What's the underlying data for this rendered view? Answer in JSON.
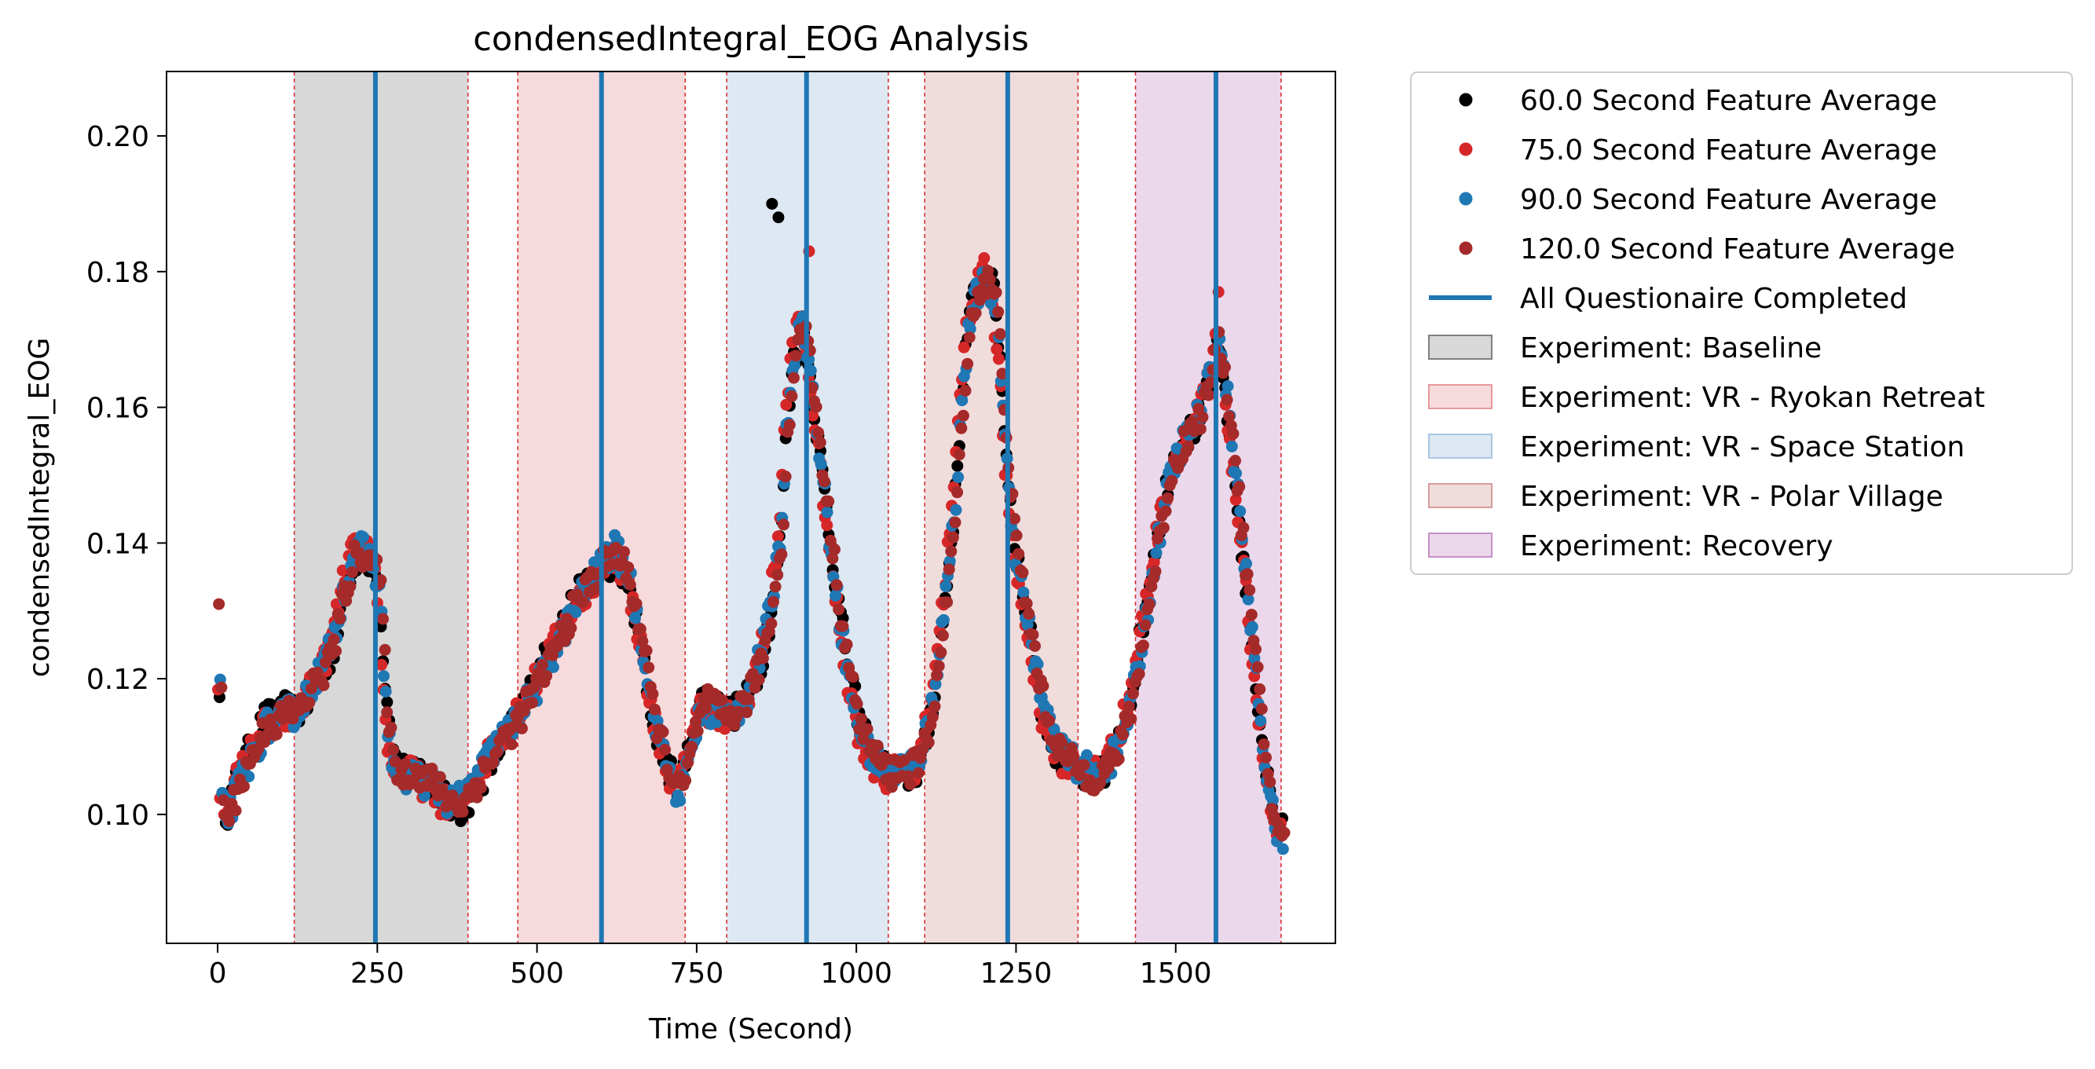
{
  "chart_data": {
    "type": "scatter",
    "title": "condensedIntegral_EOG Analysis",
    "xlabel": "Time (Second)",
    "ylabel": "condensedIntegral_EOG",
    "xlim": [
      -80,
      1750
    ],
    "ylim": [
      0.081,
      0.2095
    ],
    "xticks": [
      0,
      250,
      500,
      750,
      1000,
      1250,
      1500
    ],
    "xtick_labels": [
      "0",
      "250",
      "500",
      "750",
      "1000",
      "1250",
      "1500"
    ],
    "yticks": [
      0.1,
      0.12,
      0.14,
      0.16,
      0.18,
      0.2
    ],
    "ytick_labels": [
      "0.10",
      "0.12",
      "0.14",
      "0.16",
      "0.18",
      "0.20"
    ],
    "grid": false,
    "legend_placement": "outside-upper-right",
    "experiments": [
      {
        "name": "Experiment: Baseline",
        "start": 120,
        "end": 392,
        "color": "#7f7f7f",
        "alpha": 0.3
      },
      {
        "name": "Experiment: VR - Ryokan Retreat",
        "start": 470,
        "end": 732,
        "color": "#e8999b",
        "alpha": 0.35
      },
      {
        "name": "Experiment: VR - Space Station",
        "start": 797,
        "end": 1050,
        "color": "#a9c6e2",
        "alpha": 0.4
      },
      {
        "name": "Experiment: VR - Polar Village",
        "start": 1107,
        "end": 1347,
        "color": "#d79c9c",
        "alpha": 0.35
      },
      {
        "name": "Experiment: Recovery",
        "start": 1437,
        "end": 1665,
        "color": "#c690c6",
        "alpha": 0.35
      }
    ],
    "questionnaire_label": "All Questionaire Completed",
    "questionnaire_color": "#1f77b4",
    "questionnaire_times": [
      247,
      601,
      922,
      1237,
      1563
    ],
    "series": [
      {
        "name": "60.0 Second Feature Average",
        "color": "#000000",
        "offset": 0.0016,
        "xshift": 2
      },
      {
        "name": "75.0 Second Feature Average",
        "color": "#d62728",
        "offset": 0.0008,
        "xshift": -3
      },
      {
        "name": "90.0 Second Feature Average",
        "color": "#1f77b4",
        "offset": 0.0,
        "xshift": 4
      },
      {
        "name": "120.0 Second Feature Average",
        "color": "#a52a2a",
        "offset": -0.0006,
        "xshift": 8
      }
    ],
    "trend": {
      "x": [
        0,
        5,
        15,
        30,
        45,
        60,
        75,
        90,
        105,
        120,
        135,
        150,
        165,
        180,
        195,
        210,
        225,
        240,
        250,
        255,
        260,
        270,
        285,
        300,
        320,
        340,
        360,
        380,
        400,
        420,
        440,
        460,
        480,
        500,
        520,
        540,
        560,
        580,
        600,
        620,
        640,
        660,
        680,
        700,
        710,
        720,
        730,
        745,
        760,
        775,
        790,
        810,
        830,
        850,
        865,
        880,
        890,
        900,
        915,
        930,
        945,
        960,
        975,
        990,
        1005,
        1020,
        1035,
        1050,
        1065,
        1080,
        1095,
        1110,
        1125,
        1140,
        1155,
        1165,
        1175,
        1185,
        1195,
        1205,
        1215,
        1225,
        1235,
        1245,
        1260,
        1275,
        1290,
        1305,
        1320,
        1335,
        1350,
        1370,
        1390,
        1410,
        1430,
        1450,
        1470,
        1490,
        1510,
        1530,
        1545,
        1555,
        1565,
        1575,
        1590,
        1605,
        1620,
        1635,
        1650,
        1660
      ],
      "y": [
        0.131,
        0.101,
        0.1,
        0.104,
        0.107,
        0.11,
        0.113,
        0.113,
        0.115,
        0.115,
        0.117,
        0.12,
        0.122,
        0.126,
        0.133,
        0.138,
        0.139,
        0.137,
        0.134,
        0.128,
        0.118,
        0.108,
        0.105,
        0.106,
        0.105,
        0.104,
        0.102,
        0.102,
        0.105,
        0.108,
        0.111,
        0.113,
        0.116,
        0.119,
        0.123,
        0.127,
        0.131,
        0.134,
        0.137,
        0.139,
        0.136,
        0.127,
        0.115,
        0.108,
        0.105,
        0.103,
        0.105,
        0.112,
        0.116,
        0.115,
        0.114,
        0.115,
        0.118,
        0.124,
        0.131,
        0.142,
        0.158,
        0.168,
        0.173,
        0.162,
        0.15,
        0.138,
        0.127,
        0.118,
        0.112,
        0.109,
        0.107,
        0.106,
        0.107,
        0.107,
        0.108,
        0.113,
        0.122,
        0.134,
        0.148,
        0.163,
        0.172,
        0.176,
        0.178,
        0.178,
        0.175,
        0.165,
        0.15,
        0.14,
        0.132,
        0.124,
        0.116,
        0.112,
        0.109,
        0.108,
        0.107,
        0.106,
        0.107,
        0.11,
        0.117,
        0.128,
        0.14,
        0.15,
        0.155,
        0.158,
        0.162,
        0.166,
        0.17,
        0.165,
        0.152,
        0.138,
        0.124,
        0.11,
        0.1,
        0.096
      ]
    }
  }
}
